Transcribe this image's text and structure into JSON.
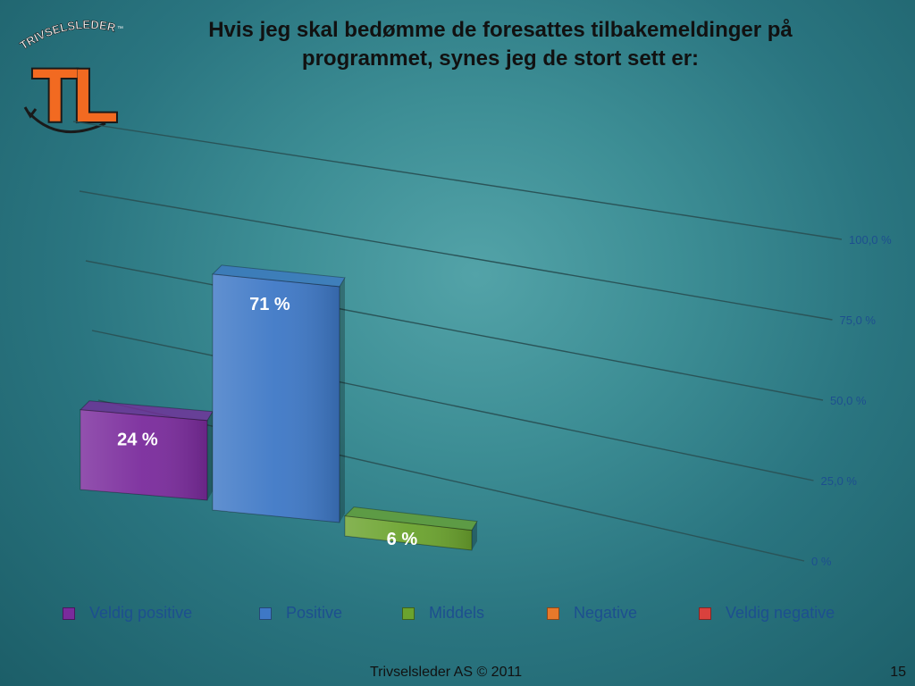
{
  "slide": {
    "title": "Hvis jeg skal bedømme de foresattes tilbakemeldinger på programmet, synes jeg de stort sett er:",
    "footer_text": "Trivselsleder AS  © 2011",
    "page_number": "15"
  },
  "logo": {
    "arc_text": "TRIVSELSLEDER",
    "trademark": "™",
    "letters": "TL",
    "colors": {
      "letters": "#f26a21",
      "outline": "#1a1a1a",
      "arc": "#f0f0f0"
    }
  },
  "chart_data": {
    "type": "bar",
    "title": "Hvis jeg skal bedømme de foresattes tilbakemeldinger på programmet, synes jeg de stort sett er:",
    "categories": [
      "Veldig positive",
      "Positive",
      "Middels",
      "Negative",
      "Veldig negative"
    ],
    "values": [
      24,
      71,
      6,
      0,
      0
    ],
    "data_labels": [
      "24 %",
      "71 %",
      "6 %",
      "",
      ""
    ],
    "colors": [
      "#7a2b9c",
      "#3e78c6",
      "#6ba32e",
      "#e8792a",
      "#d9413d"
    ],
    "y_ticks": [
      0,
      25,
      50,
      75,
      100
    ],
    "y_tick_labels": [
      "0 %",
      "25,0 %",
      "50,0 %",
      "75,0 %",
      "100,0 %"
    ],
    "ylim": [
      0,
      100
    ],
    "grid": true,
    "legend_position": "bottom",
    "three_d": true
  }
}
